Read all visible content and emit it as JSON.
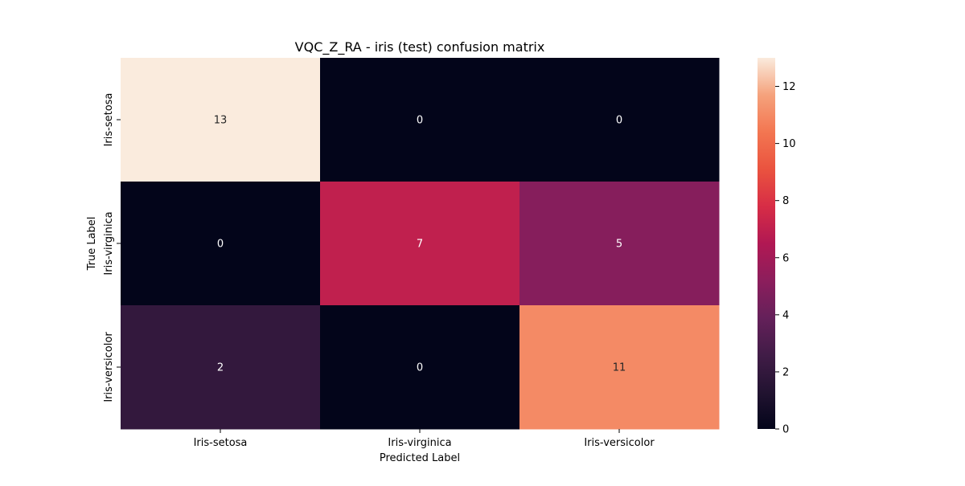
{
  "chart_data": {
    "type": "heatmap",
    "title": "VQC_Z_RA - iris (test) confusion matrix",
    "xlabel": "Predicted Label",
    "ylabel": "True Label",
    "x_categories": [
      "Iris-setosa",
      "Iris-virginica",
      "Iris-versicolor"
    ],
    "y_categories": [
      "Iris-setosa",
      "Iris-virginica",
      "Iris-versicolor"
    ],
    "values": [
      [
        13,
        0,
        0
      ],
      [
        0,
        7,
        5
      ],
      [
        2,
        0,
        11
      ]
    ],
    "colorbar": {
      "min": 0,
      "max": 13,
      "ticks": [
        0,
        2,
        4,
        6,
        8,
        10,
        12
      ],
      "colormap": "rocket"
    }
  }
}
